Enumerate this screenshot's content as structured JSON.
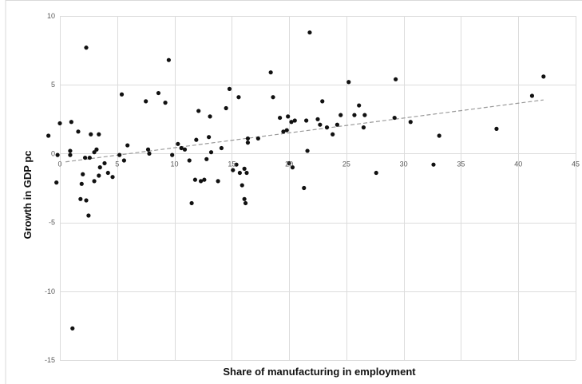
{
  "chart_data": {
    "type": "scatter",
    "title": "",
    "xlabel": "Share of manufacturing in employment",
    "ylabel": "Growth in GDP pc",
    "xlim": [
      0,
      45
    ],
    "ylim": [
      -15,
      10
    ],
    "x_ticks": [
      0,
      5,
      10,
      15,
      20,
      25,
      30,
      35,
      40,
      45
    ],
    "y_ticks": [
      10,
      5,
      0,
      -5,
      -10,
      -15
    ],
    "x_tick_labels": [
      "0",
      "5",
      "10",
      "15",
      "20",
      "25",
      "30",
      "35",
      "40",
      "45"
    ],
    "y_tick_labels": [
      "10",
      "5",
      "0",
      "-5",
      "-10",
      "-15"
    ],
    "grid": true,
    "legend": "none",
    "colors": {
      "points": "#111111",
      "trendline": "#9a9a9a",
      "grid": "#dcdcdc"
    },
    "trendline": {
      "style": "dashed",
      "x": [
        0.5,
        42.2
      ],
      "y": [
        -0.6,
        3.9
      ]
    },
    "points": [
      [
        -1.0,
        1.3
      ],
      [
        0.0,
        2.2
      ],
      [
        -0.2,
        -0.1
      ],
      [
        -0.3,
        -2.1
      ],
      [
        1.0,
        2.3
      ],
      [
        0.9,
        0.2
      ],
      [
        0.9,
        -0.1
      ],
      [
        1.1,
        -12.7
      ],
      [
        1.6,
        1.6
      ],
      [
        1.8,
        -3.3
      ],
      [
        2.0,
        -1.5
      ],
      [
        1.9,
        -2.2
      ],
      [
        2.2,
        -0.3
      ],
      [
        2.3,
        7.7
      ],
      [
        2.3,
        -3.4
      ],
      [
        2.5,
        -4.5
      ],
      [
        2.6,
        -0.3
      ],
      [
        2.7,
        1.4
      ],
      [
        3.0,
        -2.0
      ],
      [
        3.0,
        0.1
      ],
      [
        3.2,
        0.3
      ],
      [
        3.4,
        1.4
      ],
      [
        3.4,
        -1.6
      ],
      [
        3.5,
        -1.0
      ],
      [
        3.9,
        -0.7
      ],
      [
        4.2,
        -1.4
      ],
      [
        4.6,
        -1.7
      ],
      [
        5.2,
        -0.1
      ],
      [
        5.4,
        4.3
      ],
      [
        5.6,
        -0.5
      ],
      [
        5.9,
        0.6
      ],
      [
        7.5,
        3.8
      ],
      [
        7.7,
        0.3
      ],
      [
        7.8,
        0.0
      ],
      [
        8.6,
        4.4
      ],
      [
        9.2,
        3.7
      ],
      [
        9.5,
        6.8
      ],
      [
        9.8,
        -0.1
      ],
      [
        10.3,
        0.7
      ],
      [
        10.6,
        0.4
      ],
      [
        10.9,
        0.3
      ],
      [
        11.3,
        -0.5
      ],
      [
        11.5,
        -3.6
      ],
      [
        11.8,
        -1.9
      ],
      [
        11.9,
        1.0
      ],
      [
        12.1,
        3.1
      ],
      [
        12.3,
        -2.0
      ],
      [
        12.6,
        -1.9
      ],
      [
        12.8,
        -0.4
      ],
      [
        13.0,
        1.2
      ],
      [
        13.1,
        2.7
      ],
      [
        13.2,
        0.1
      ],
      [
        13.8,
        -2.0
      ],
      [
        14.1,
        0.4
      ],
      [
        14.5,
        3.3
      ],
      [
        14.8,
        4.7
      ],
      [
        15.1,
        -1.2
      ],
      [
        15.4,
        -0.8
      ],
      [
        15.6,
        4.1
      ],
      [
        15.7,
        -1.4
      ],
      [
        15.9,
        -2.3
      ],
      [
        16.1,
        -3.3
      ],
      [
        16.2,
        -3.6
      ],
      [
        16.1,
        -1.1
      ],
      [
        16.3,
        -1.4
      ],
      [
        16.4,
        0.8
      ],
      [
        16.4,
        1.1
      ],
      [
        17.3,
        1.1
      ],
      [
        18.4,
        5.9
      ],
      [
        18.6,
        4.1
      ],
      [
        19.2,
        2.6
      ],
      [
        19.5,
        1.6
      ],
      [
        19.8,
        1.7
      ],
      [
        19.9,
        2.7
      ],
      [
        20.2,
        2.3
      ],
      [
        20.0,
        -0.7
      ],
      [
        20.3,
        -1.0
      ],
      [
        20.5,
        2.4
      ],
      [
        21.3,
        -2.5
      ],
      [
        21.5,
        2.4
      ],
      [
        21.6,
        0.2
      ],
      [
        21.8,
        8.8
      ],
      [
        22.5,
        2.5
      ],
      [
        22.7,
        2.1
      ],
      [
        22.9,
        3.8
      ],
      [
        23.3,
        1.9
      ],
      [
        23.8,
        1.4
      ],
      [
        24.2,
        2.1
      ],
      [
        24.5,
        2.8
      ],
      [
        25.2,
        5.2
      ],
      [
        25.7,
        2.8
      ],
      [
        26.1,
        3.5
      ],
      [
        26.6,
        2.8
      ],
      [
        26.5,
        1.9
      ],
      [
        27.6,
        -1.4
      ],
      [
        29.2,
        2.6
      ],
      [
        29.3,
        5.4
      ],
      [
        30.6,
        2.3
      ],
      [
        32.6,
        -0.8
      ],
      [
        33.1,
        1.3
      ],
      [
        38.1,
        1.8
      ],
      [
        41.2,
        4.2
      ],
      [
        42.2,
        5.6
      ]
    ]
  }
}
